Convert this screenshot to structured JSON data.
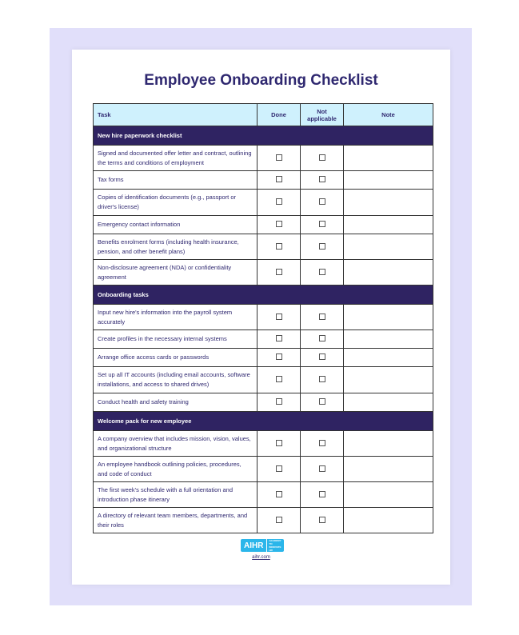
{
  "title": "Employee Onboarding Checklist",
  "headers": {
    "task": "Task",
    "done": "Done",
    "na": "Not applicable",
    "note": "Note"
  },
  "sections": [
    {
      "title": "New hire paperwork checklist",
      "items": [
        "Signed and documented offer letter and contract, outlining the terms and conditions of employment",
        "Tax forms",
        "Copies of identification documents (e.g., passport or driver's license)",
        "Emergency contact information",
        "Benefits enrolment forms (including health insurance, pension, and other benefit plans)",
        "Non-disclosure agreement (NDA) or confidentiality agreement"
      ]
    },
    {
      "title": "Onboarding tasks",
      "items": [
        "Input new hire's information into the payroll system accurately",
        "Create profiles in the necessary internal systems",
        "Arrange office access cards or passwords",
        "Set up all IT accounts (including email accounts, software installations, and access to shared drives)",
        "Conduct health and safety training"
      ]
    },
    {
      "title": "Welcome pack for new employee",
      "items": [
        "A company overview that includes mission, vision, values, and organizational structure",
        "An employee handbook outlining policies, procedures, and code of conduct",
        "The first week's schedule with a full orientation and introduction phase itinerary",
        "A directory of relevant team members, departments, and their roles"
      ]
    }
  ],
  "footer": {
    "logo": "AIHR",
    "logo_tagline": "ACADEMY TO INNOVATE HR",
    "url": "aihr.com"
  }
}
